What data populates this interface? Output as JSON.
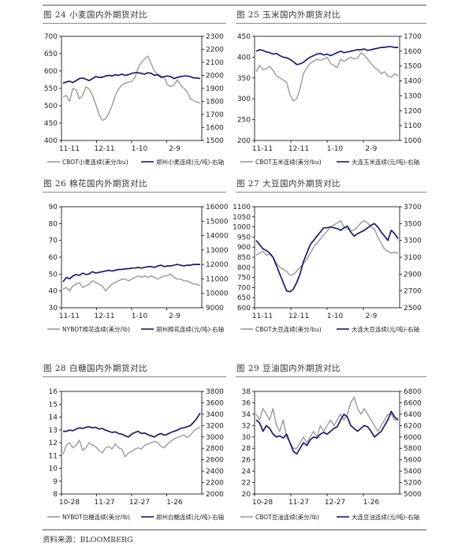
{
  "source": "资料来源：BLOOMBERG",
  "panels": [
    {
      "title": "图 24  小麦国内外期货对比"
    },
    {
      "title": "图 25  玉米国内外期货对比"
    },
    {
      "title": "图 26  棉花国内外期货对比"
    },
    {
      "title": "图 27  大豆国内外期货对比"
    },
    {
      "title": "图 28  白糖国内外期货对比"
    },
    {
      "title": "图 29  豆油国内外期货对比"
    }
  ],
  "colors": {
    "foreign": "#9a9a9a",
    "domestic": "#1a1a6e",
    "axis": "#000000"
  },
  "chart_data": [
    {
      "type": "line",
      "title": "图 24  小麦国内外期货对比",
      "xlabels": [
        "11-11",
        "12-11",
        "1-10",
        "2-9"
      ],
      "xtick_pos": [
        0,
        0.25,
        0.5,
        0.75
      ],
      "ylim_left": [
        400,
        700
      ],
      "yticks_left": [
        400,
        450,
        500,
        550,
        600,
        650,
        700
      ],
      "ylim_right": [
        1500,
        2300
      ],
      "yticks_right": [
        1500,
        1600,
        1700,
        1800,
        1900,
        2000,
        2100,
        2200,
        2300
      ],
      "series": [
        {
          "name": "CBOT小麦连续(美分/bu)",
          "axis": "left",
          "values": [
            525,
            530,
            512,
            550,
            545,
            520,
            530,
            555,
            548,
            530,
            505,
            475,
            458,
            462,
            478,
            500,
            530,
            548,
            560,
            565,
            568,
            570,
            580,
            610,
            625,
            635,
            643,
            620,
            600,
            590,
            586,
            580,
            560,
            555,
            560,
            575,
            560,
            550,
            540,
            520,
            515,
            510,
            508
          ]
        },
        {
          "name": "郑州小麦连续(元/吨)-右轴",
          "axis": "right",
          "values": [
            1940,
            1950,
            1955,
            1945,
            1960,
            1975,
            1980,
            1970,
            1960,
            1975,
            1990,
            1985,
            1985,
            1995,
            2000,
            1995,
            2005,
            2000,
            2010,
            2000,
            2005,
            2015,
            2020,
            2020,
            2015,
            2010,
            2020,
            2015,
            2000,
            2005,
            1985,
            1990,
            1995,
            1990,
            1975,
            1985,
            1990,
            1995,
            1995,
            1990,
            1980,
            1980,
            1975
          ]
        }
      ]
    },
    {
      "type": "line",
      "title": "图 25  玉米国内外期货对比",
      "xlabels": [
        "11-11",
        "12-11",
        "1-10",
        "2-9"
      ],
      "xtick_pos": [
        0,
        0.25,
        0.5,
        0.75
      ],
      "ylim_left": [
        200,
        450
      ],
      "yticks_left": [
        200,
        250,
        300,
        350,
        400,
        450
      ],
      "ylim_right": [
        1000,
        1700
      ],
      "yticks_right": [
        1000,
        1100,
        1200,
        1300,
        1400,
        1500,
        1600,
        1700
      ],
      "series": [
        {
          "name": "CBOT玉米连续(美分/bu)",
          "axis": "left",
          "values": [
            365,
            380,
            370,
            372,
            378,
            368,
            355,
            350,
            345,
            340,
            310,
            295,
            300,
            325,
            360,
            375,
            385,
            390,
            395,
            392,
            395,
            400,
            385,
            380,
            375,
            395,
            390,
            395,
            400,
            395,
            398,
            410,
            405,
            395,
            385,
            375,
            370,
            360,
            365,
            355,
            352,
            360,
            355
          ]
        },
        {
          "name": "大连玉米连续(元/吨)-右轴",
          "axis": "right",
          "values": [
            1600,
            1610,
            1605,
            1595,
            1590,
            1580,
            1585,
            1570,
            1560,
            1555,
            1545,
            1530,
            1510,
            1515,
            1525,
            1545,
            1560,
            1570,
            1580,
            1585,
            1575,
            1580,
            1570,
            1580,
            1590,
            1600,
            1590,
            1595,
            1600,
            1605,
            1610,
            1610,
            1615,
            1605,
            1610,
            1615,
            1620,
            1625,
            1625,
            1630,
            1630,
            1625,
            1625
          ]
        }
      ]
    },
    {
      "type": "line",
      "title": "图 26  棉花国内外期货对比",
      "xlabels": [
        "11-11",
        "12-11",
        "1-10",
        "2-9"
      ],
      "xtick_pos": [
        0,
        0.25,
        0.5,
        0.75
      ],
      "ylim_left": [
        30,
        90
      ],
      "yticks_left": [
        30,
        40,
        50,
        60,
        70,
        80,
        90
      ],
      "ylim_right": [
        9000,
        16000
      ],
      "yticks_right": [
        9000,
        10000,
        11000,
        12000,
        13000,
        14000,
        15000,
        16000
      ],
      "series": [
        {
          "name": "NYBOT棉花连续(美分/lb)",
          "axis": "left",
          "values": [
            41,
            42,
            40,
            43,
            44,
            45,
            42,
            43,
            44,
            46,
            45,
            44,
            43,
            40,
            42,
            44,
            45,
            46,
            47,
            47,
            46,
            47,
            48,
            49,
            48,
            49,
            48,
            49,
            48,
            47,
            48,
            49,
            49,
            50,
            48,
            47,
            47,
            46,
            46,
            45,
            44,
            44,
            43
          ]
        },
        {
          "name": "郑州棉花连续(元/吨)-右轴",
          "axis": "right",
          "values": [
            10800,
            11100,
            11000,
            11200,
            11300,
            11250,
            11400,
            11300,
            11350,
            11500,
            11400,
            11450,
            11500,
            11550,
            11600,
            11550,
            11600,
            11650,
            11650,
            11700,
            11700,
            11750,
            11750,
            11800,
            11750,
            11800,
            11850,
            11850,
            11800,
            11900,
            11950,
            11850,
            11900,
            11900,
            11950,
            12000,
            11950,
            11900,
            11950,
            11950,
            12000,
            12000,
            12000
          ]
        }
      ]
    },
    {
      "type": "line",
      "title": "图 27  大豆国内外期货对比",
      "xlabels": [
        "11-11",
        "12-11",
        "1-10",
        "2-9"
      ],
      "xtick_pos": [
        0,
        0.25,
        0.5,
        0.75
      ],
      "ylim_left": [
        600,
        1100
      ],
      "yticks_left": [
        600,
        650,
        700,
        750,
        800,
        850,
        900,
        950,
        1000,
        1050,
        1100
      ],
      "ylim_right": [
        2500,
        3700
      ],
      "yticks_right": [
        2500,
        2700,
        2900,
        3100,
        3300,
        3500,
        3700
      ],
      "series": [
        {
          "name": "CBOT大豆连续(美分/bu)",
          "axis": "left",
          "values": [
            860,
            870,
            880,
            860,
            865,
            850,
            820,
            800,
            790,
            780,
            760,
            765,
            780,
            800,
            820,
            840,
            870,
            900,
            920,
            940,
            960,
            980,
            1000,
            1010,
            1020,
            1030,
            1000,
            990,
            980,
            985,
            1000,
            1020,
            1030,
            1020,
            1000,
            990,
            950,
            920,
            890,
            880,
            870,
            875,
            870
          ]
        },
        {
          "name": "大连大豆连续(元/吨)-右轴",
          "axis": "right",
          "values": [
            3300,
            3250,
            3200,
            3180,
            3150,
            3100,
            3000,
            2900,
            2800,
            2700,
            2690,
            2720,
            2800,
            2900,
            3050,
            3150,
            3250,
            3300,
            3350,
            3400,
            3450,
            3450,
            3460,
            3450,
            3440,
            3420,
            3450,
            3470,
            3400,
            3350,
            3380,
            3400,
            3420,
            3450,
            3480,
            3500,
            3460,
            3400,
            3350,
            3300,
            3420,
            3380,
            3320
          ]
        }
      ]
    },
    {
      "type": "line",
      "title": "图 28  白糖国内外期货对比",
      "xlabels": [
        "10-28",
        "11-27",
        "12-27",
        "1-26"
      ],
      "xtick_pos": [
        0,
        0.25,
        0.5,
        0.75
      ],
      "ylim_left": [
        8,
        16
      ],
      "yticks_left": [
        8,
        9,
        10,
        11,
        12,
        13,
        14,
        15,
        16
      ],
      "ylim_right": [
        2000,
        3800
      ],
      "yticks_right": [
        2000,
        2200,
        2400,
        2600,
        2800,
        3000,
        3200,
        3400,
        3600,
        3800
      ],
      "series": [
        {
          "name": "NYBOT白糖连续(美分/lb)",
          "axis": "left",
          "values": [
            11.1,
            11.8,
            12.0,
            11.6,
            11.8,
            12.2,
            11.4,
            11.6,
            12.0,
            11.8,
            11.7,
            11.4,
            11.2,
            11.6,
            11.7,
            11.5,
            11.9,
            11.6,
            11.5,
            10.9,
            11.2,
            11.3,
            11.5,
            11.6,
            11.5,
            11.8,
            11.9,
            12.0,
            12.1,
            12.0,
            11.7,
            11.6,
            11.9,
            12.1,
            12.3,
            12.4,
            12.5,
            12.6,
            12.4,
            12.6,
            12.9,
            13.1,
            13.2
          ]
        },
        {
          "name": "郑州白糖连续(元/吨)-右轴",
          "axis": "right",
          "values": [
            3100,
            3100,
            3120,
            3110,
            3140,
            3160,
            3150,
            3170,
            3180,
            3160,
            3170,
            3140,
            3150,
            3120,
            3100,
            3080,
            3090,
            3060,
            3050,
            3020,
            3000,
            3050,
            3080,
            3100,
            3060,
            3070,
            3040,
            3020,
            3000,
            3040,
            3060,
            3030,
            3050,
            3080,
            3100,
            3120,
            3150,
            3160,
            3180,
            3200,
            3260,
            3330,
            3420
          ]
        }
      ]
    },
    {
      "type": "line",
      "title": "图 29  豆油国内外期货对比",
      "xlabels": [
        "10-28",
        "11-27",
        "12-27",
        "1-26"
      ],
      "xtick_pos": [
        0,
        0.25,
        0.5,
        0.75
      ],
      "ylim_left": [
        20,
        38
      ],
      "yticks_left": [
        20,
        22,
        24,
        26,
        28,
        30,
        32,
        34,
        36,
        38
      ],
      "ylim_right": [
        5000,
        6800
      ],
      "yticks_right": [
        5000,
        5200,
        5400,
        5600,
        5800,
        6000,
        6200,
        6400,
        6600,
        6800
      ],
      "series": [
        {
          "name": "CBOT豆油连续(美分/lb)",
          "axis": "left",
          "values": [
            34,
            33,
            35,
            34,
            33,
            35,
            32,
            31,
            33,
            30,
            29,
            28,
            28,
            29,
            30,
            29,
            30,
            31,
            30,
            32,
            31,
            32,
            33,
            32,
            33,
            34,
            33,
            34,
            36,
            37,
            35,
            34,
            35,
            34,
            33,
            32,
            31,
            32,
            33,
            34,
            34,
            33,
            33
          ]
        },
        {
          "name": "大连豆油连续(元/吨)-右轴",
          "axis": "right",
          "values": [
            6300,
            6250,
            6100,
            6200,
            6150,
            6050,
            6000,
            6020,
            5980,
            6050,
            5900,
            5750,
            5700,
            5800,
            5900,
            5850,
            5950,
            6000,
            5980,
            6050,
            6080,
            6050,
            6100,
            6150,
            6180,
            6300,
            6400,
            6350,
            6200,
            6150,
            6100,
            6150,
            6200,
            6180,
            6100,
            6000,
            6050,
            6100,
            6200,
            6300,
            6450,
            6350,
            6300
          ]
        }
      ]
    }
  ]
}
